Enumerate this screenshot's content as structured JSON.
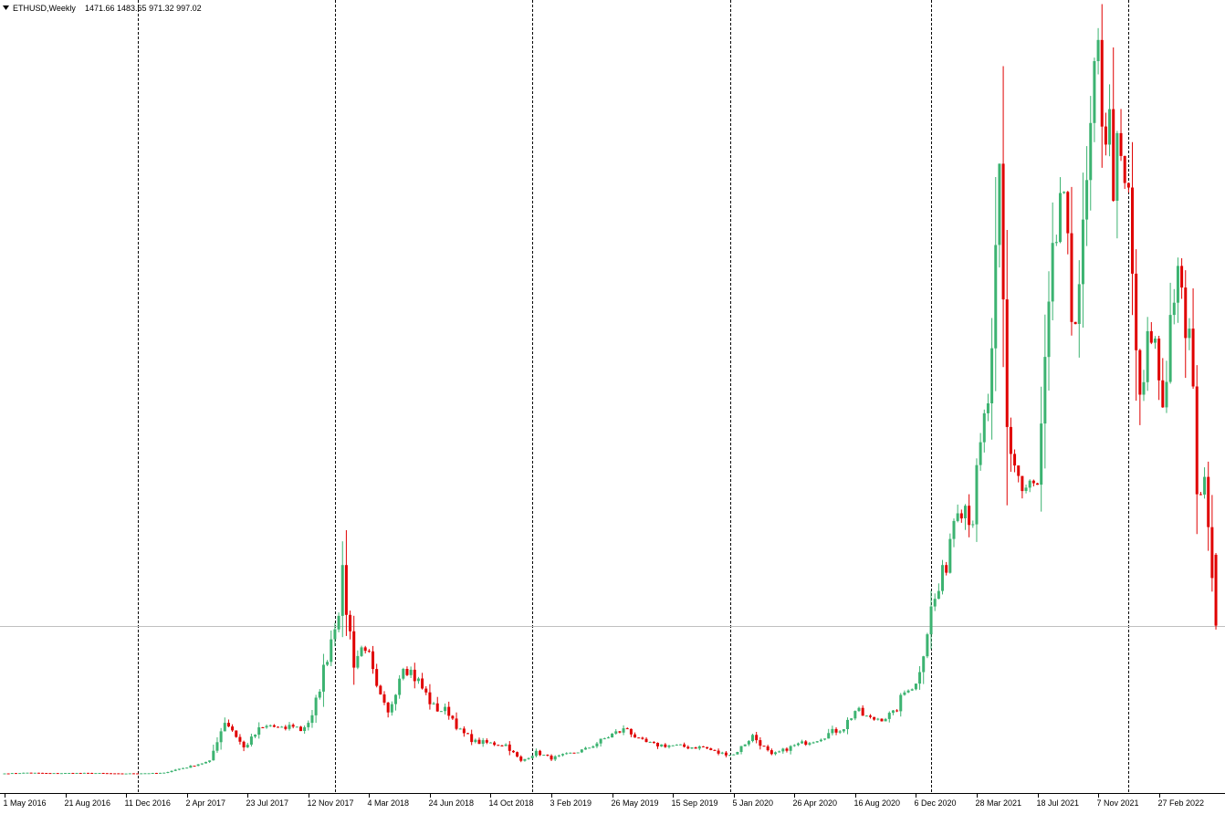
{
  "header": {
    "symbol": "ETHUSD,Weekly",
    "ohlc": "1471.66 1483.65 971.32 997.02",
    "menu_icon": "triangle-down-icon"
  },
  "colors": {
    "bull": "#3cb371",
    "bear": "#e00000",
    "separator": "#000000",
    "price_line": "#c0c0c0",
    "background": "#ffffff"
  },
  "chart_data": {
    "type": "candlestick",
    "title": "ETHUSD,Weekly",
    "interval": "Weekly",
    "current_price": 997.02,
    "last_bar": {
      "open": 1471.66,
      "high": 1483.65,
      "low": 971.32,
      "close": 997.02
    },
    "x_tick_labels": [
      "1 May 2016",
      "21 Aug 2016",
      "11 Dec 2016",
      "2 Apr 2017",
      "23 Jul 2017",
      "12 Nov 2017",
      "4 Mar 2018",
      "24 Jun 2018",
      "14 Oct 2018",
      "3 Feb 2019",
      "26 May 2019",
      "15 Sep 2019",
      "5 Jan 2020",
      "26 Apr 2020",
      "16 Aug 2020",
      "6 Dec 2020",
      "28 Mar 2021",
      "18 Jul 2021",
      "7 Nov 2021",
      "27 Feb 2022"
    ],
    "period_separators": [
      "2017",
      "2018",
      "2019",
      "2020",
      "2021",
      "2022"
    ],
    "grid": false,
    "series": [
      {
        "points": [
          [
            "2016-05-01",
            9.1
          ],
          [
            "2016-06-12",
            13.8
          ],
          [
            "2016-07-24",
            11.0
          ],
          [
            "2016-09-04",
            12.0
          ],
          [
            "2016-10-16",
            11.8
          ],
          [
            "2016-11-27",
            8.5
          ],
          [
            "2017-01-08",
            10.0
          ],
          [
            "2017-02-19",
            13.0
          ],
          [
            "2017-03-19",
            40.0
          ],
          [
            "2017-04-02",
            50.0
          ],
          [
            "2017-04-30",
            78.0
          ],
          [
            "2017-05-14",
            90.0
          ],
          [
            "2017-05-28",
            230.0
          ],
          [
            "2017-06-11",
            360.0
          ],
          [
            "2017-06-25",
            300.0
          ],
          [
            "2017-07-16",
            180.0
          ],
          [
            "2017-08-13",
            300.0
          ],
          [
            "2017-09-03",
            330.0
          ],
          [
            "2017-09-24",
            300.0
          ],
          [
            "2017-10-15",
            335.0
          ],
          [
            "2017-10-29",
            300.0
          ],
          [
            "2017-11-19",
            380.0
          ],
          [
            "2017-12-10",
            700.0
          ],
          [
            "2018-01-07",
            1140.0
          ],
          [
            "2018-01-14",
            1300.0
          ],
          [
            "2018-02-04",
            760.0
          ],
          [
            "2018-02-25",
            880.0
          ],
          [
            "2018-03-18",
            560.0
          ],
          [
            "2018-04-08",
            400.0
          ],
          [
            "2018-05-06",
            760.0
          ],
          [
            "2018-06-03",
            620.0
          ],
          [
            "2018-07-01",
            450.0
          ],
          [
            "2018-07-29",
            420.0
          ],
          [
            "2018-08-19",
            290.0
          ],
          [
            "2018-09-16",
            220.0
          ],
          [
            "2018-10-14",
            210.0
          ],
          [
            "2018-11-11",
            200.0
          ],
          [
            "2018-12-09",
            90.0
          ],
          [
            "2019-01-06",
            150.0
          ],
          [
            "2019-02-03",
            110.0
          ],
          [
            "2019-03-03",
            135.0
          ],
          [
            "2019-04-07",
            170.0
          ],
          [
            "2019-05-26",
            270.0
          ],
          [
            "2019-06-23",
            310.0
          ],
          [
            "2019-07-14",
            230.0
          ],
          [
            "2019-08-11",
            200.0
          ],
          [
            "2019-09-15",
            195.0
          ],
          [
            "2019-10-13",
            185.0
          ],
          [
            "2019-11-10",
            185.0
          ],
          [
            "2019-12-08",
            145.0
          ],
          [
            "2020-01-05",
            135.0
          ],
          [
            "2020-02-09",
            260.0
          ],
          [
            "2020-03-15",
            130.0
          ],
          [
            "2020-04-26",
            195.0
          ],
          [
            "2020-06-07",
            240.0
          ],
          [
            "2020-07-26",
            320.0
          ],
          [
            "2020-08-16",
            430.0
          ],
          [
            "2020-09-13",
            370.0
          ],
          [
            "2020-10-25",
            400.0
          ],
          [
            "2020-11-22",
            600.0
          ],
          [
            "2020-12-06",
            600.0
          ],
          [
            "2021-01-03",
            1100.0
          ],
          [
            "2021-01-24",
            1300.0
          ],
          [
            "2021-02-21",
            1900.0
          ],
          [
            "2021-03-21",
            1750.0
          ],
          [
            "2021-04-25",
            2700.0
          ],
          [
            "2021-05-09",
            3900.0
          ],
          [
            "2021-05-23",
            2300.0
          ],
          [
            "2021-06-20",
            1900.0
          ],
          [
            "2021-07-18",
            1900.0
          ],
          [
            "2021-08-08",
            3000.0
          ],
          [
            "2021-08-29",
            3900.0
          ],
          [
            "2021-09-19",
            3100.0
          ],
          [
            "2021-10-10",
            3500.0
          ],
          [
            "2021-10-24",
            4200.0
          ],
          [
            "2021-11-07",
            4700.0
          ],
          [
            "2021-12-05",
            4100.0
          ],
          [
            "2022-01-02",
            3800.0
          ],
          [
            "2022-01-23",
            2400.0
          ],
          [
            "2022-02-13",
            3000.0
          ],
          [
            "2022-03-06",
            2500.0
          ],
          [
            "2022-03-27",
            3300.0
          ],
          [
            "2022-04-24",
            2900.0
          ],
          [
            "2022-05-08",
            2000.0
          ],
          [
            "2022-05-29",
            1800.0
          ],
          [
            "2022-06-12",
            997.02
          ]
        ]
      }
    ]
  }
}
